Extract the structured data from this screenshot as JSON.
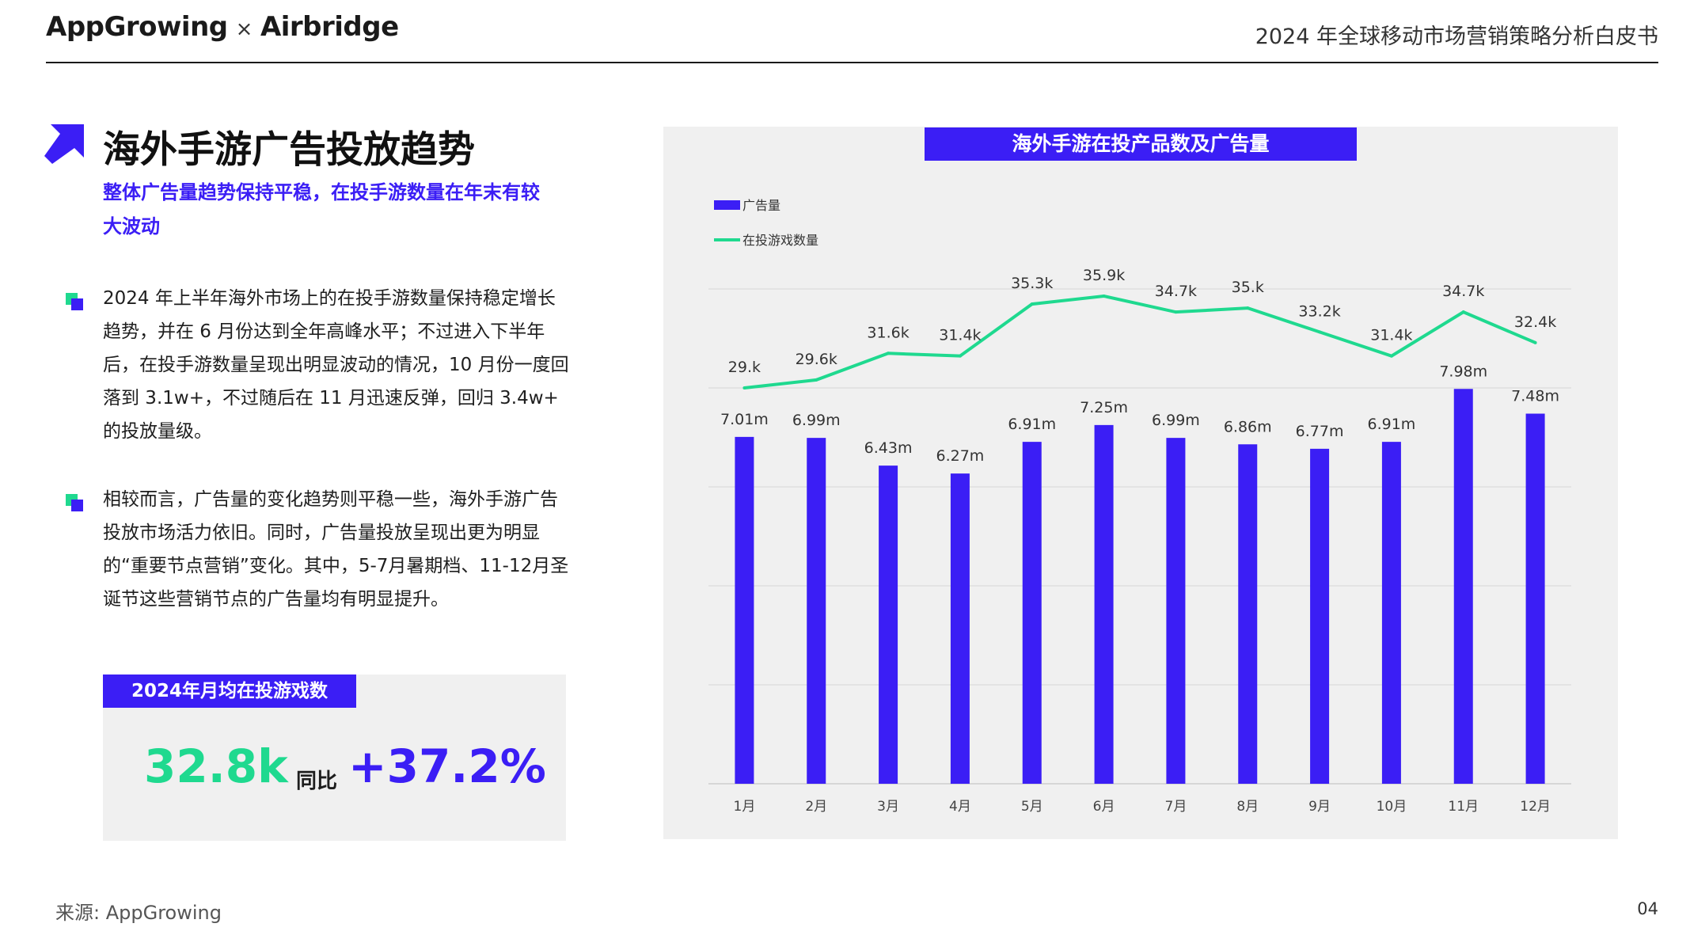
{
  "header": {
    "logo_left": "AppGrowing",
    "logo_sep": "×",
    "logo_right": "Airbridge",
    "doc_title": "2024 年全球移动市场营销策略分析白皮书"
  },
  "left": {
    "title": "海外手游广告投放趋势",
    "subtitle": "整体广告量趋势保持平稳，在投手游数量在年末有较大波动",
    "paragraphs": [
      "2024 年上半年海外市场上的在投手游数量保持稳定增长趋势，并在 6 月份达到全年高峰水平；不过进入下半年后，在投手游数量呈现出明显波动的情况，10 月份一度回落到 3.1w+，不过随后在 11 月迅速反弹，回归 3.4w+ 的投放量级。",
      "相较而言，广告量的变化趋势则平稳一些，海外手游广告投放市场活力依旧。同时，广告量投放呈现出更为明显的“重要节点营销”变化。其中，5-7月暑期档、11-12月圣诞节这些营销节点的广告量均有明显提升。"
    ],
    "stat": {
      "label": "2024年月均在投游戏数",
      "value": "32.8k",
      "yoy_label": "同比",
      "yoy_value": "+37.2%"
    }
  },
  "chart_data": {
    "type": "bar",
    "title": "海外手游在投产品数及广告量",
    "legend_position": "top-left",
    "grid": true,
    "categories": [
      "1月",
      "2月",
      "3月",
      "4月",
      "5月",
      "6月",
      "7月",
      "8月",
      "9月",
      "10月",
      "11月",
      "12月"
    ],
    "series": [
      {
        "name": "广告量",
        "type": "bar",
        "values": [
          7.01,
          6.99,
          6.43,
          6.27,
          6.91,
          7.25,
          6.99,
          6.86,
          6.77,
          6.91,
          7.98,
          7.48
        ],
        "labels": [
          "7.01m",
          "6.99m",
          "6.43m",
          "6.27m",
          "6.91m",
          "7.25m",
          "6.99m",
          "6.86m",
          "6.77m",
          "6.91m",
          "7.98m",
          "7.48m"
        ]
      },
      {
        "name": "在投游戏数量",
        "type": "line",
        "values": [
          29.0,
          29.6,
          31.6,
          31.4,
          35.3,
          35.9,
          34.7,
          35.0,
          33.2,
          31.4,
          34.7,
          32.4
        ],
        "labels": [
          "29.k",
          "29.6k",
          "31.6k",
          "31.4k",
          "35.3k",
          "35.9k",
          "34.7k",
          "35.k",
          "33.2k",
          "31.4k",
          "34.7k",
          "32.4k"
        ]
      }
    ],
    "colors": {
      "bar": "#3b1ef5",
      "line": "#1fd98f"
    }
  },
  "footer": {
    "source": "来源: AppGrowing",
    "page": "04"
  }
}
